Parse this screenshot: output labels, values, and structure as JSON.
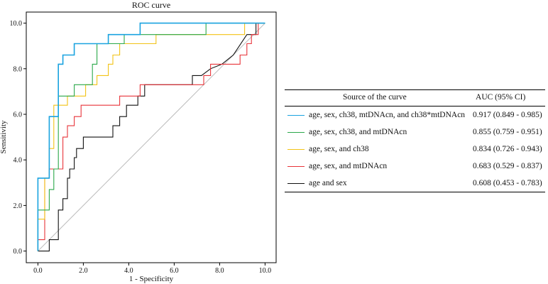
{
  "chart_data": {
    "type": "line",
    "title": "ROC curve",
    "xlabel": "1 - Specificity",
    "ylabel": "Sensitivity",
    "xlim": [
      0,
      10
    ],
    "ylim": [
      0,
      10
    ],
    "xticks": [
      "0.0",
      "2.0",
      "4.0",
      "6.0",
      "8.0",
      "10.0"
    ],
    "yticks": [
      "0.0",
      "2.0",
      "4.0",
      "6.0",
      "8.0",
      "10.0"
    ],
    "diagonal_reference": true,
    "legend_header": {
      "source": "Source of the curve",
      "auc": "AUC (95% CI)"
    },
    "series": [
      {
        "name": "age, sex, ch38, mtDNAcn, and ch38*mtDNAcn",
        "auc": "0.917 (0.849 - 0.985)",
        "color": "#1aa3e0",
        "points": [
          [
            0,
            0
          ],
          [
            0,
            3.2
          ],
          [
            0.5,
            3.2
          ],
          [
            0.5,
            5.9
          ],
          [
            0.9,
            5.9
          ],
          [
            0.9,
            8.2
          ],
          [
            1.1,
            8.2
          ],
          [
            1.1,
            8.6
          ],
          [
            1.6,
            8.6
          ],
          [
            1.6,
            9.1
          ],
          [
            3.1,
            9.1
          ],
          [
            3.1,
            9.5
          ],
          [
            4.5,
            9.5
          ],
          [
            4.5,
            10
          ],
          [
            10,
            10
          ]
        ]
      },
      {
        "name": "age, sex, ch38, and mtDNAcn",
        "auc": "0.855 (0.759 - 0.951)",
        "color": "#2aa84a",
        "points": [
          [
            0,
            0
          ],
          [
            0,
            1.8
          ],
          [
            0.5,
            1.8
          ],
          [
            0.5,
            2.7
          ],
          [
            0.7,
            2.7
          ],
          [
            0.7,
            3.6
          ],
          [
            0.9,
            3.6
          ],
          [
            0.9,
            6.8
          ],
          [
            1.6,
            6.8
          ],
          [
            1.6,
            7.3
          ],
          [
            2.4,
            7.3
          ],
          [
            2.4,
            8.2
          ],
          [
            2.6,
            8.2
          ],
          [
            2.6,
            9.1
          ],
          [
            3.8,
            9.1
          ],
          [
            3.8,
            9.5
          ],
          [
            7.4,
            9.5
          ],
          [
            7.4,
            10
          ],
          [
            10,
            10
          ]
        ]
      },
      {
        "name": "age, sex, and ch38",
        "auc": "0.834 (0.726 - 0.943)",
        "color": "#f2c316",
        "points": [
          [
            0,
            0
          ],
          [
            0,
            1.4
          ],
          [
            0.3,
            1.4
          ],
          [
            0.3,
            3.2
          ],
          [
            0.5,
            3.2
          ],
          [
            0.5,
            4.5
          ],
          [
            0.7,
            4.5
          ],
          [
            0.7,
            6.4
          ],
          [
            1.3,
            6.4
          ],
          [
            1.3,
            6.8
          ],
          [
            2.1,
            6.8
          ],
          [
            2.1,
            7.3
          ],
          [
            2.6,
            7.3
          ],
          [
            2.6,
            7.7
          ],
          [
            3.1,
            7.7
          ],
          [
            3.1,
            8.2
          ],
          [
            3.3,
            8.2
          ],
          [
            3.3,
            8.6
          ],
          [
            3.6,
            8.6
          ],
          [
            3.6,
            9.1
          ],
          [
            5.2,
            9.1
          ],
          [
            5.2,
            9.5
          ],
          [
            9.1,
            9.5
          ],
          [
            9.1,
            10
          ],
          [
            10,
            10
          ]
        ]
      },
      {
        "name": "age, sex, and mtDNAcn",
        "auc": "0.683 (0.529 - 0.837)",
        "color": "#e8343a",
        "points": [
          [
            0,
            0
          ],
          [
            0,
            0.5
          ],
          [
            0.3,
            0.5
          ],
          [
            0.3,
            3.2
          ],
          [
            0.5,
            3.2
          ],
          [
            0.5,
            3.6
          ],
          [
            1.1,
            3.6
          ],
          [
            1.1,
            5.0
          ],
          [
            1.3,
            5.0
          ],
          [
            1.3,
            5.5
          ],
          [
            1.6,
            5.5
          ],
          [
            1.6,
            5.9
          ],
          [
            1.9,
            5.9
          ],
          [
            1.9,
            6.4
          ],
          [
            3.6,
            6.4
          ],
          [
            3.6,
            6.8
          ],
          [
            4.5,
            6.8
          ],
          [
            4.5,
            7.3
          ],
          [
            7.3,
            7.3
          ],
          [
            7.3,
            7.7
          ],
          [
            7.6,
            7.7
          ],
          [
            7.6,
            8.2
          ],
          [
            8.9,
            8.2
          ],
          [
            8.9,
            8.6
          ],
          [
            9.2,
            8.6
          ],
          [
            9.2,
            9.1
          ],
          [
            9.4,
            9.1
          ],
          [
            9.4,
            9.5
          ],
          [
            9.7,
            9.5
          ],
          [
            9.7,
            10
          ],
          [
            10,
            10
          ]
        ]
      },
      {
        "name": "age and sex",
        "auc": "0.608 (0.453 - 0.783)",
        "color": "#111111",
        "points": [
          [
            0,
            0
          ],
          [
            0.5,
            0
          ],
          [
            0.5,
            0.5
          ],
          [
            0.9,
            0.5
          ],
          [
            0.9,
            1.8
          ],
          [
            1.1,
            1.8
          ],
          [
            1.1,
            2.3
          ],
          [
            1.3,
            2.3
          ],
          [
            1.3,
            3.2
          ],
          [
            1.4,
            3.2
          ],
          [
            1.4,
            3.6
          ],
          [
            1.6,
            3.6
          ],
          [
            1.6,
            4.1
          ],
          [
            1.7,
            4.1
          ],
          [
            1.7,
            4.5
          ],
          [
            2.0,
            4.5
          ],
          [
            2.0,
            5.0
          ],
          [
            3.3,
            5.0
          ],
          [
            3.3,
            5.5
          ],
          [
            3.6,
            5.5
          ],
          [
            3.6,
            5.9
          ],
          [
            3.9,
            5.9
          ],
          [
            3.9,
            6.4
          ],
          [
            4.4,
            6.4
          ],
          [
            4.4,
            6.8
          ],
          [
            4.7,
            6.8
          ],
          [
            4.7,
            7.3
          ],
          [
            6.8,
            7.3
          ],
          [
            6.8,
            7.7
          ],
          [
            7.2,
            7.7
          ],
          [
            7.6,
            8.0
          ],
          [
            8.1,
            8.2
          ],
          [
            8.6,
            8.6
          ],
          [
            9.2,
            9.5
          ],
          [
            9.6,
            9.5
          ],
          [
            9.6,
            10
          ],
          [
            10,
            10
          ]
        ]
      }
    ]
  }
}
